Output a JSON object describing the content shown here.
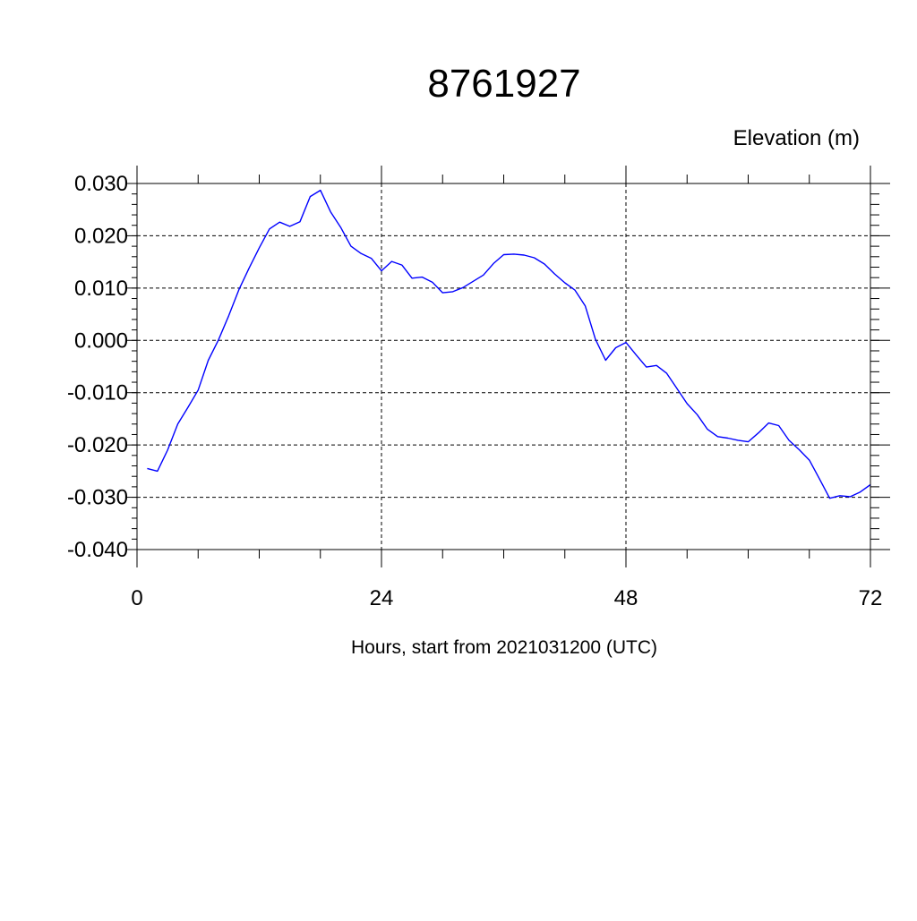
{
  "chart_data": {
    "type": "line",
    "title": "8761927",
    "right_title": "Elevation (m)",
    "xlabel": "Hours, start from 2021031200 (UTC)",
    "ylabel": "",
    "xlim": [
      0,
      72
    ],
    "ylim": [
      -0.04,
      0.03
    ],
    "xticks": [
      0,
      24,
      48,
      72
    ],
    "xtick_labels": [
      "0",
      "24",
      "48",
      "72"
    ],
    "yticks": [
      0.03,
      0.02,
      0.01,
      0.0,
      -0.01,
      -0.02,
      -0.03,
      -0.04
    ],
    "ytick_labels": [
      "0.030",
      "0.020",
      "0.010",
      "0.000",
      "-0.010",
      "-0.020",
      "-0.030",
      "-0.040"
    ],
    "grid": true,
    "line_color": "#0000ff",
    "series": [
      {
        "x": [
          1,
          2,
          3,
          4,
          5,
          6,
          7,
          8,
          9,
          10,
          11,
          12,
          13,
          14,
          15,
          16,
          17,
          18,
          19,
          20,
          21,
          22,
          23,
          24,
          25,
          26,
          27,
          28,
          29,
          30,
          31,
          32,
          33,
          34,
          35,
          36,
          37,
          38,
          39,
          40,
          41,
          42,
          43,
          44,
          45,
          46,
          47,
          48,
          49,
          50,
          51,
          52,
          53,
          54,
          55,
          56,
          57,
          58,
          59,
          60,
          61,
          62,
          63,
          64,
          65,
          66,
          67,
          68,
          69,
          70,
          71,
          72
        ],
        "values": [
          -0.0245,
          -0.025,
          -0.021,
          -0.016,
          -0.0128,
          -0.0095,
          -0.0038,
          0.0001,
          0.0047,
          0.0097,
          0.0138,
          0.0177,
          0.0213,
          0.0226,
          0.0218,
          0.0227,
          0.0275,
          0.0287,
          0.0246,
          0.0216,
          0.018,
          0.0166,
          0.0157,
          0.0133,
          0.0151,
          0.0144,
          0.0119,
          0.0121,
          0.0111,
          0.0091,
          0.0093,
          0.0101,
          0.0113,
          0.0125,
          0.0147,
          0.0164,
          0.0165,
          0.0163,
          0.0158,
          0.0146,
          0.0127,
          0.011,
          0.0096,
          0.0066,
          0.0002,
          -0.0038,
          -0.0014,
          -0.0004,
          -0.0028,
          -0.0051,
          -0.0048,
          -0.0063,
          -0.0092,
          -0.0121,
          -0.0142,
          -0.017,
          -0.0184,
          -0.0187,
          -0.0191,
          -0.0194,
          -0.0177,
          -0.0158,
          -0.0163,
          -0.0191,
          -0.0209,
          -0.0229,
          -0.0265,
          -0.0302,
          -0.0297,
          -0.0299,
          -0.029,
          -0.0276
        ]
      }
    ]
  }
}
